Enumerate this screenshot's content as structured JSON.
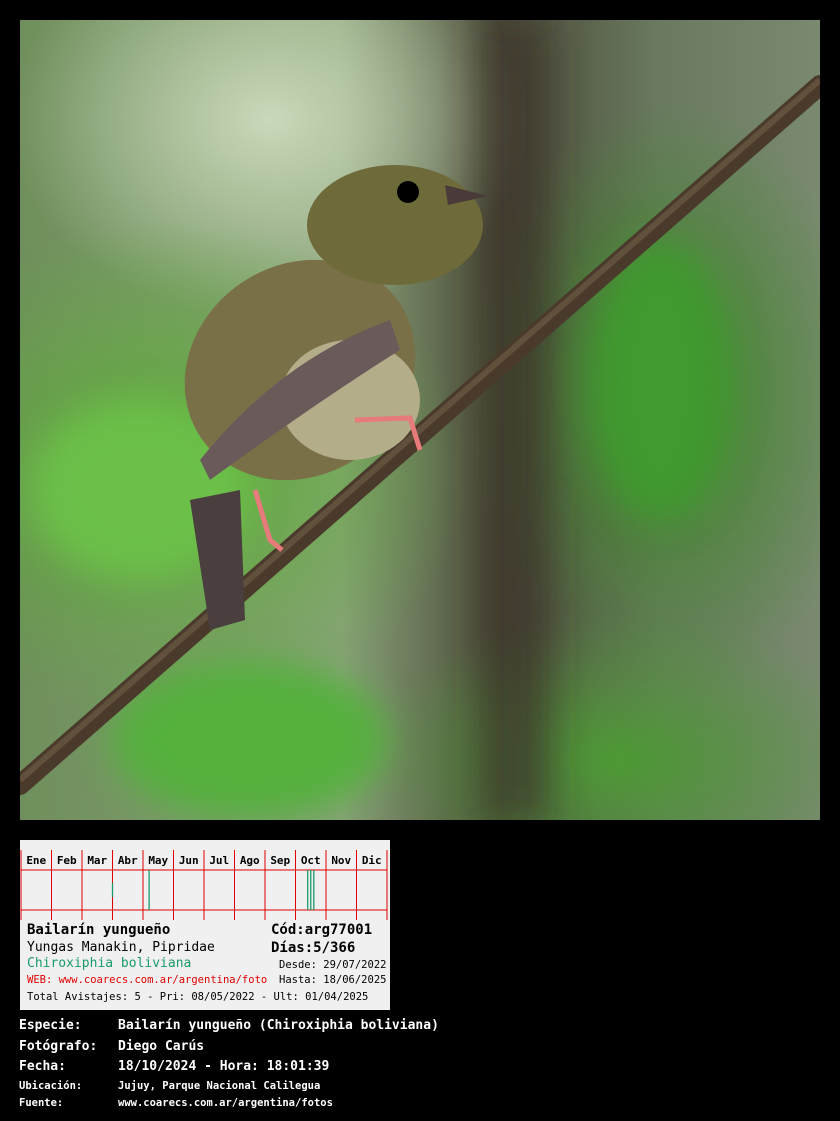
{
  "card": {
    "months": [
      "Ene",
      "Feb",
      "Mar",
      "Abr",
      "May",
      "Jun",
      "Jul",
      "Ago",
      "Sep",
      "Oct",
      "Nov",
      "Dic"
    ],
    "common_name": "Bailarín yungueño",
    "english_name": "Yungas Manakin, Pipridae",
    "scientific_name": "Chiroxiphia boliviana",
    "web": "WEB: www.coarecs.com.ar/argentina/foto",
    "code": "Cód:arg77001",
    "days": "Días:5/366",
    "desde": "Desde: 29/07/2022",
    "hasta": "Hasta: 18/06/2025",
    "totals": "Total Avistajes: 5 - Pri: 08/05/2022 - Ult: 01/04/2025",
    "colors": {
      "grid": "#e00000",
      "sighting": "#1a9a6a",
      "web": "#e00000",
      "scientific": "#1a9a6a"
    }
  },
  "info": {
    "especie_label": "Especie:",
    "especie": "Bailarín yungueño (Chiroxiphia boliviana)",
    "fotografo_label": "Fotógrafo:",
    "fotografo": "Diego Carús",
    "fecha_label": "Fecha:",
    "fecha": "18/10/2024 - Hora: 18:01:39",
    "ubicacion_label": "Ubicación:",
    "ubicacion": "Jujuy, Parque Nacional Calilegua",
    "fuente_label": "Fuente:",
    "fuente": "www.coarecs.com.ar/argentina/fotos"
  }
}
